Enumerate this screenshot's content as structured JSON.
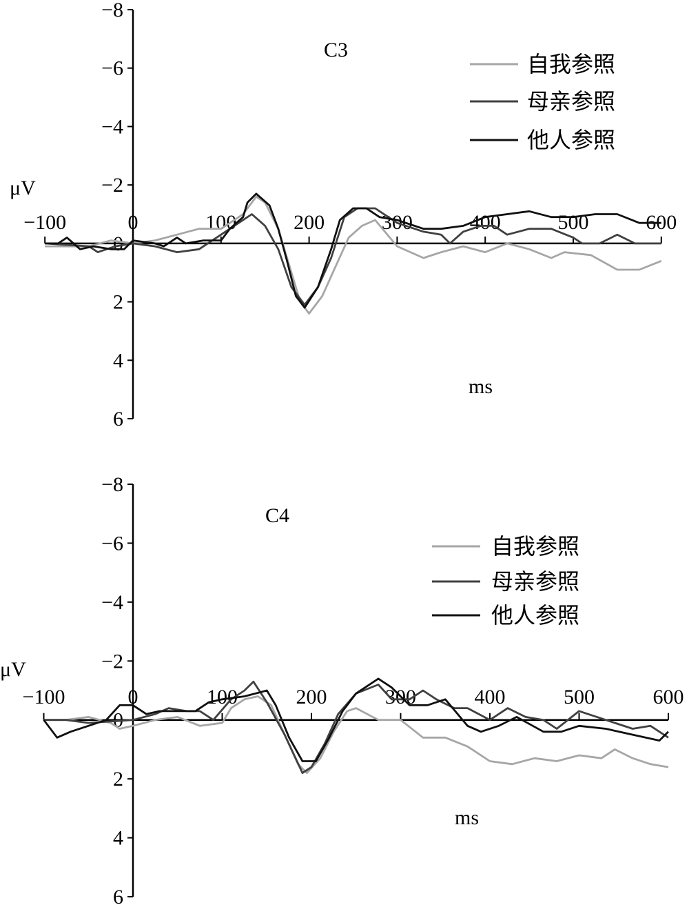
{
  "chart_data": [
    {
      "type": "line",
      "title": "C3",
      "xlabel": "ms",
      "ylabel": "μV",
      "xlim": [
        -100,
        600
      ],
      "ylim": [
        6,
        -8
      ],
      "y_inverted": true,
      "xticks": [
        -100,
        0,
        100,
        200,
        300,
        400,
        500,
        600
      ],
      "yticks": [
        -8,
        -6,
        -4,
        -2,
        0,
        2,
        4,
        6
      ],
      "ytick_labels": [
        "−8",
        "−6",
        "−4",
        "−2",
        "0",
        "2",
        "4",
        "6"
      ],
      "xtick_labels": [
        "−100",
        "0",
        "100",
        "200",
        "300",
        "400",
        "500",
        "600"
      ],
      "legend_position": "top-right",
      "grid": false,
      "series": [
        {
          "name": "自我参照",
          "color": "#a6a6a6",
          "x": [
            -100,
            -75,
            -50,
            -25,
            0,
            25,
            50,
            75,
            100,
            125,
            140,
            150,
            165,
            175,
            190,
            200,
            215,
            230,
            245,
            260,
            275,
            300,
            330,
            350,
            375,
            400,
            425,
            450,
            475,
            490,
            520,
            550,
            575,
            600
          ],
          "y": [
            0.1,
            0.1,
            0.1,
            -0.1,
            0,
            -0.1,
            -0.3,
            -0.5,
            -0.5,
            -1.0,
            -1.6,
            -1.4,
            -0.5,
            0.5,
            2.0,
            2.4,
            1.8,
            0.8,
            -0.2,
            -0.6,
            -0.8,
            0.1,
            0.5,
            0.3,
            0.1,
            0.3,
            0,
            0.2,
            0.5,
            0.3,
            0.4,
            0.9,
            0.9,
            0.6
          ]
        },
        {
          "name": "母亲参照",
          "color": "#404040",
          "x": [
            -100,
            -50,
            -40,
            -20,
            0,
            25,
            50,
            75,
            100,
            120,
            135,
            150,
            165,
            180,
            195,
            210,
            225,
            240,
            255,
            275,
            300,
            330,
            350,
            360,
            375,
            395,
            410,
            425,
            450,
            475,
            500,
            510,
            530,
            550,
            570,
            600
          ],
          "y": [
            0,
            0.1,
            0.3,
            0.1,
            0,
            0.1,
            0.3,
            0.2,
            -0.3,
            -0.7,
            -1.0,
            -0.6,
            0.2,
            1.5,
            2.1,
            1.5,
            0.5,
            -0.9,
            -1.2,
            -1.2,
            -0.7,
            -0.4,
            -0.3,
            0,
            -0.4,
            -0.6,
            -0.6,
            -0.3,
            -0.5,
            -0.5,
            -0.2,
            0,
            0,
            -0.3,
            0,
            0
          ]
        },
        {
          "name": "他人参照",
          "color": "#101010",
          "x": [
            -100,
            -85,
            -75,
            -60,
            -45,
            -25,
            -10,
            0,
            25,
            35,
            50,
            60,
            80,
            100,
            110,
            125,
            130,
            140,
            155,
            165,
            175,
            185,
            195,
            210,
            225,
            235,
            250,
            265,
            280,
            300,
            330,
            350,
            375,
            400,
            425,
            450,
            475,
            500,
            525,
            550,
            575,
            600
          ],
          "y": [
            0,
            0,
            -0.2,
            0.2,
            0.1,
            0.2,
            0.2,
            -0.1,
            0,
            0.1,
            -0.2,
            0,
            -0.1,
            -0.1,
            -0.5,
            -0.9,
            -1.4,
            -1.7,
            -1.3,
            -0.5,
            0.6,
            1.8,
            2.2,
            1.5,
            0.2,
            -0.8,
            -1.2,
            -1.2,
            -0.9,
            -0.8,
            -0.5,
            -0.5,
            -0.6,
            -0.9,
            -1.0,
            -1.1,
            -0.9,
            -0.9,
            -1.0,
            -1.0,
            -0.7,
            -0.7
          ]
        }
      ]
    },
    {
      "type": "line",
      "title": "C4",
      "xlabel": "ms",
      "ylabel": "μV",
      "xlim": [
        -100,
        600
      ],
      "ylim": [
        6,
        -8
      ],
      "y_inverted": true,
      "xticks": [
        -100,
        0,
        100,
        200,
        300,
        400,
        500,
        600
      ],
      "yticks": [
        -8,
        -6,
        -4,
        -2,
        0,
        2,
        4,
        6
      ],
      "ytick_labels": [
        "−8",
        "−6",
        "−4",
        "−2",
        "0",
        "2",
        "4",
        "6"
      ],
      "xtick_labels": [
        "−100",
        "0",
        "100",
        "200",
        "300",
        "400",
        "500",
        "600"
      ],
      "legend_position": "top-right",
      "grid": false,
      "series": [
        {
          "name": "自我参照",
          "color": "#a6a6a6",
          "x": [
            -100,
            -75,
            -50,
            -25,
            -15,
            0,
            25,
            50,
            75,
            100,
            110,
            125,
            140,
            155,
            170,
            185,
            195,
            210,
            225,
            240,
            250,
            275,
            300,
            325,
            350,
            375,
            400,
            425,
            450,
            475,
            500,
            525,
            540,
            560,
            580,
            600
          ],
          "y": [
            0,
            0,
            -0.1,
            0.1,
            0.3,
            0.2,
            0,
            -0.1,
            0.2,
            0.1,
            -0.4,
            -0.7,
            -0.8,
            -0.5,
            0.5,
            1.5,
            1.8,
            1.3,
            0.4,
            -0.3,
            -0.4,
            0,
            0,
            0.6,
            0.6,
            0.9,
            1.4,
            1.5,
            1.3,
            1.4,
            1.2,
            1.3,
            1.0,
            1.3,
            1.5,
            1.6
          ]
        },
        {
          "name": "母亲参照",
          "color": "#404040",
          "x": [
            -100,
            -75,
            -50,
            0,
            25,
            40,
            60,
            75,
            90,
            110,
            125,
            135,
            150,
            170,
            190,
            200,
            215,
            230,
            250,
            275,
            290,
            310,
            325,
            340,
            360,
            375,
            400,
            420,
            440,
            460,
            475,
            500,
            520,
            540,
            560,
            580,
            600
          ],
          "y": [
            0,
            0,
            0.1,
            0,
            -0.2,
            -0.4,
            -0.3,
            -0.3,
            0,
            -0.7,
            -1.0,
            -1.3,
            -0.6,
            0.5,
            1.8,
            1.6,
            0.8,
            -0.2,
            -0.9,
            -1.2,
            -0.7,
            -0.7,
            -1.0,
            -0.7,
            -0.4,
            -0.4,
            0,
            -0.4,
            -0.1,
            0,
            0.3,
            -0.3,
            -0.1,
            0.1,
            0.3,
            0.2,
            0.6
          ]
        },
        {
          "name": "他人参照",
          "color": "#101010",
          "x": [
            -100,
            -85,
            -70,
            -50,
            -30,
            -15,
            0,
            15,
            30,
            70,
            85,
            100,
            125,
            150,
            160,
            175,
            190,
            205,
            220,
            235,
            250,
            275,
            290,
            310,
            330,
            350,
            375,
            390,
            410,
            430,
            460,
            480,
            500,
            530,
            560,
            590,
            600
          ],
          "y": [
            0,
            0.6,
            0.4,
            0.2,
            0,
            -0.5,
            -0.5,
            -0.2,
            -0.3,
            -0.3,
            -0.6,
            -0.7,
            -0.8,
            -1.0,
            -0.5,
            0.6,
            1.4,
            1.4,
            0.6,
            -0.3,
            -0.9,
            -1.4,
            -1.1,
            -0.5,
            -0.5,
            -0.7,
            0.2,
            0.4,
            0.2,
            -0.1,
            0.4,
            0.4,
            0.2,
            0.3,
            0.5,
            0.7,
            0.4
          ]
        }
      ]
    }
  ]
}
